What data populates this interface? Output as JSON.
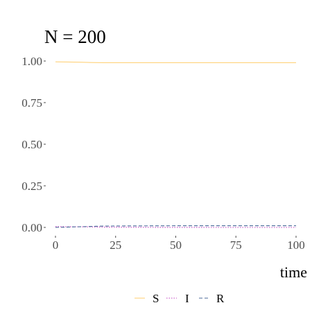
{
  "chart_data": {
    "type": "line",
    "title": "N = 200",
    "xlabel": "time",
    "ylabel": "",
    "xlim": [
      0,
      100
    ],
    "ylim": [
      0,
      1
    ],
    "x_ticks": [
      0,
      25,
      50,
      75,
      100
    ],
    "y_ticks": [
      0,
      0.25,
      0.5,
      0.75,
      1
    ],
    "y_tick_labels": [
      "0.00",
      "0.25",
      "0.50",
      "0.75",
      "1.00"
    ],
    "x_tick_labels": [
      "0",
      "25",
      "50",
      "75",
      "100"
    ],
    "grid": false,
    "legend_position": "bottom",
    "series": [
      {
        "name": "S",
        "color": "#ffd27a",
        "dash": "solid",
        "points": [
          [
            0,
            0.995
          ],
          [
            5,
            0.994
          ],
          [
            10,
            0.993
          ],
          [
            15,
            0.991
          ],
          [
            20,
            0.99
          ],
          [
            30,
            0.99
          ],
          [
            40,
            0.99
          ],
          [
            50,
            0.99
          ],
          [
            60,
            0.99
          ],
          [
            70,
            0.99
          ],
          [
            80,
            0.99
          ],
          [
            90,
            0.99
          ],
          [
            100,
            0.99
          ]
        ]
      },
      {
        "name": "I",
        "color": "#c040c0",
        "dash": "dotted",
        "points": [
          [
            0,
            0.005
          ],
          [
            5,
            0.004
          ],
          [
            10,
            0.004
          ],
          [
            15,
            0.003
          ],
          [
            20,
            0.002
          ],
          [
            30,
            0.001
          ],
          [
            40,
            0.0005
          ],
          [
            50,
            0.0002
          ],
          [
            60,
            0.0001
          ],
          [
            70,
            0
          ],
          [
            80,
            0
          ],
          [
            90,
            0
          ],
          [
            100,
            0
          ]
        ]
      },
      {
        "name": "R",
        "color": "#4a6a9a",
        "dash": "dashed",
        "points": [
          [
            0,
            0
          ],
          [
            5,
            0.002
          ],
          [
            10,
            0.004
          ],
          [
            15,
            0.006
          ],
          [
            20,
            0.008
          ],
          [
            30,
            0.009
          ],
          [
            40,
            0.0095
          ],
          [
            50,
            0.01
          ],
          [
            60,
            0.01
          ],
          [
            70,
            0.01
          ],
          [
            80,
            0.01
          ],
          [
            90,
            0.01
          ],
          [
            100,
            0.01
          ]
        ]
      }
    ]
  }
}
